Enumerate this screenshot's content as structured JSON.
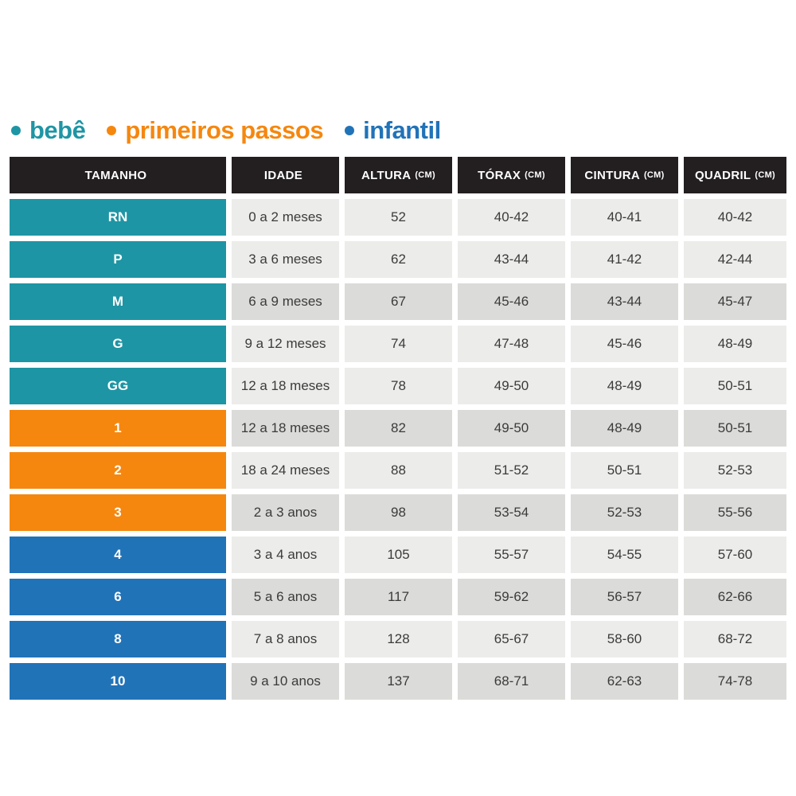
{
  "colors": {
    "bebe": "#1e95a4",
    "primeiros_passos": "#f5870f",
    "infantil": "#2173b8",
    "header_bg": "#231f20",
    "row_light": "#ececea",
    "row_dark": "#dbdbd9"
  },
  "legend": {
    "items": [
      {
        "label": "bebê",
        "color": "#1e95a4"
      },
      {
        "label": "primeiros passos",
        "color": "#f5870f"
      },
      {
        "label": "infantil",
        "color": "#2173b8"
      }
    ]
  },
  "chart_data": {
    "type": "table",
    "columns": [
      {
        "label": "TAMANHO",
        "unit": ""
      },
      {
        "label": "IDADE",
        "unit": ""
      },
      {
        "label": "ALTURA",
        "unit": "(CM)"
      },
      {
        "label": "TÓRAX",
        "unit": "(CM)"
      },
      {
        "label": "CINTURA",
        "unit": "(CM)"
      },
      {
        "label": "QUADRIL",
        "unit": "(CM)"
      }
    ],
    "rows": [
      {
        "size": "RN",
        "group": "bebe",
        "shade": "light",
        "idade": "0 a 2 meses",
        "altura": "52",
        "torax": "40-42",
        "cintura": "40-41",
        "quadril": "40-42"
      },
      {
        "size": "P",
        "group": "bebe",
        "shade": "light",
        "idade": "3 a 6 meses",
        "altura": "62",
        "torax": "43-44",
        "cintura": "41-42",
        "quadril": "42-44"
      },
      {
        "size": "M",
        "group": "bebe",
        "shade": "dark",
        "idade": "6 a 9 meses",
        "altura": "67",
        "torax": "45-46",
        "cintura": "43-44",
        "quadril": "45-47"
      },
      {
        "size": "G",
        "group": "bebe",
        "shade": "light",
        "idade": "9 a 12 meses",
        "altura": "74",
        "torax": "47-48",
        "cintura": "45-46",
        "quadril": "48-49"
      },
      {
        "size": "GG",
        "group": "bebe",
        "shade": "light",
        "idade": "12 a 18 meses",
        "altura": "78",
        "torax": "49-50",
        "cintura": "48-49",
        "quadril": "50-51"
      },
      {
        "size": "1",
        "group": "primeiros_passos",
        "shade": "dark",
        "idade": "12 a 18 meses",
        "altura": "82",
        "torax": "49-50",
        "cintura": "48-49",
        "quadril": "50-51"
      },
      {
        "size": "2",
        "group": "primeiros_passos",
        "shade": "light",
        "idade": "18 a 24 meses",
        "altura": "88",
        "torax": "51-52",
        "cintura": "50-51",
        "quadril": "52-53"
      },
      {
        "size": "3",
        "group": "primeiros_passos",
        "shade": "dark",
        "idade": "2 a 3 anos",
        "altura": "98",
        "torax": "53-54",
        "cintura": "52-53",
        "quadril": "55-56"
      },
      {
        "size": "4",
        "group": "infantil",
        "shade": "light",
        "idade": "3 a 4 anos",
        "altura": "105",
        "torax": "55-57",
        "cintura": "54-55",
        "quadril": "57-60"
      },
      {
        "size": "6",
        "group": "infantil",
        "shade": "dark",
        "idade": "5 a 6 anos",
        "altura": "117",
        "torax": "59-62",
        "cintura": "56-57",
        "quadril": "62-66"
      },
      {
        "size": "8",
        "group": "infantil",
        "shade": "light",
        "idade": "7 a 8 anos",
        "altura": "128",
        "torax": "65-67",
        "cintura": "58-60",
        "quadril": "68-72"
      },
      {
        "size": "10",
        "group": "infantil",
        "shade": "dark",
        "idade": "9 a 10 anos",
        "altura": "137",
        "torax": "68-71",
        "cintura": "62-63",
        "quadril": "74-78"
      }
    ]
  }
}
